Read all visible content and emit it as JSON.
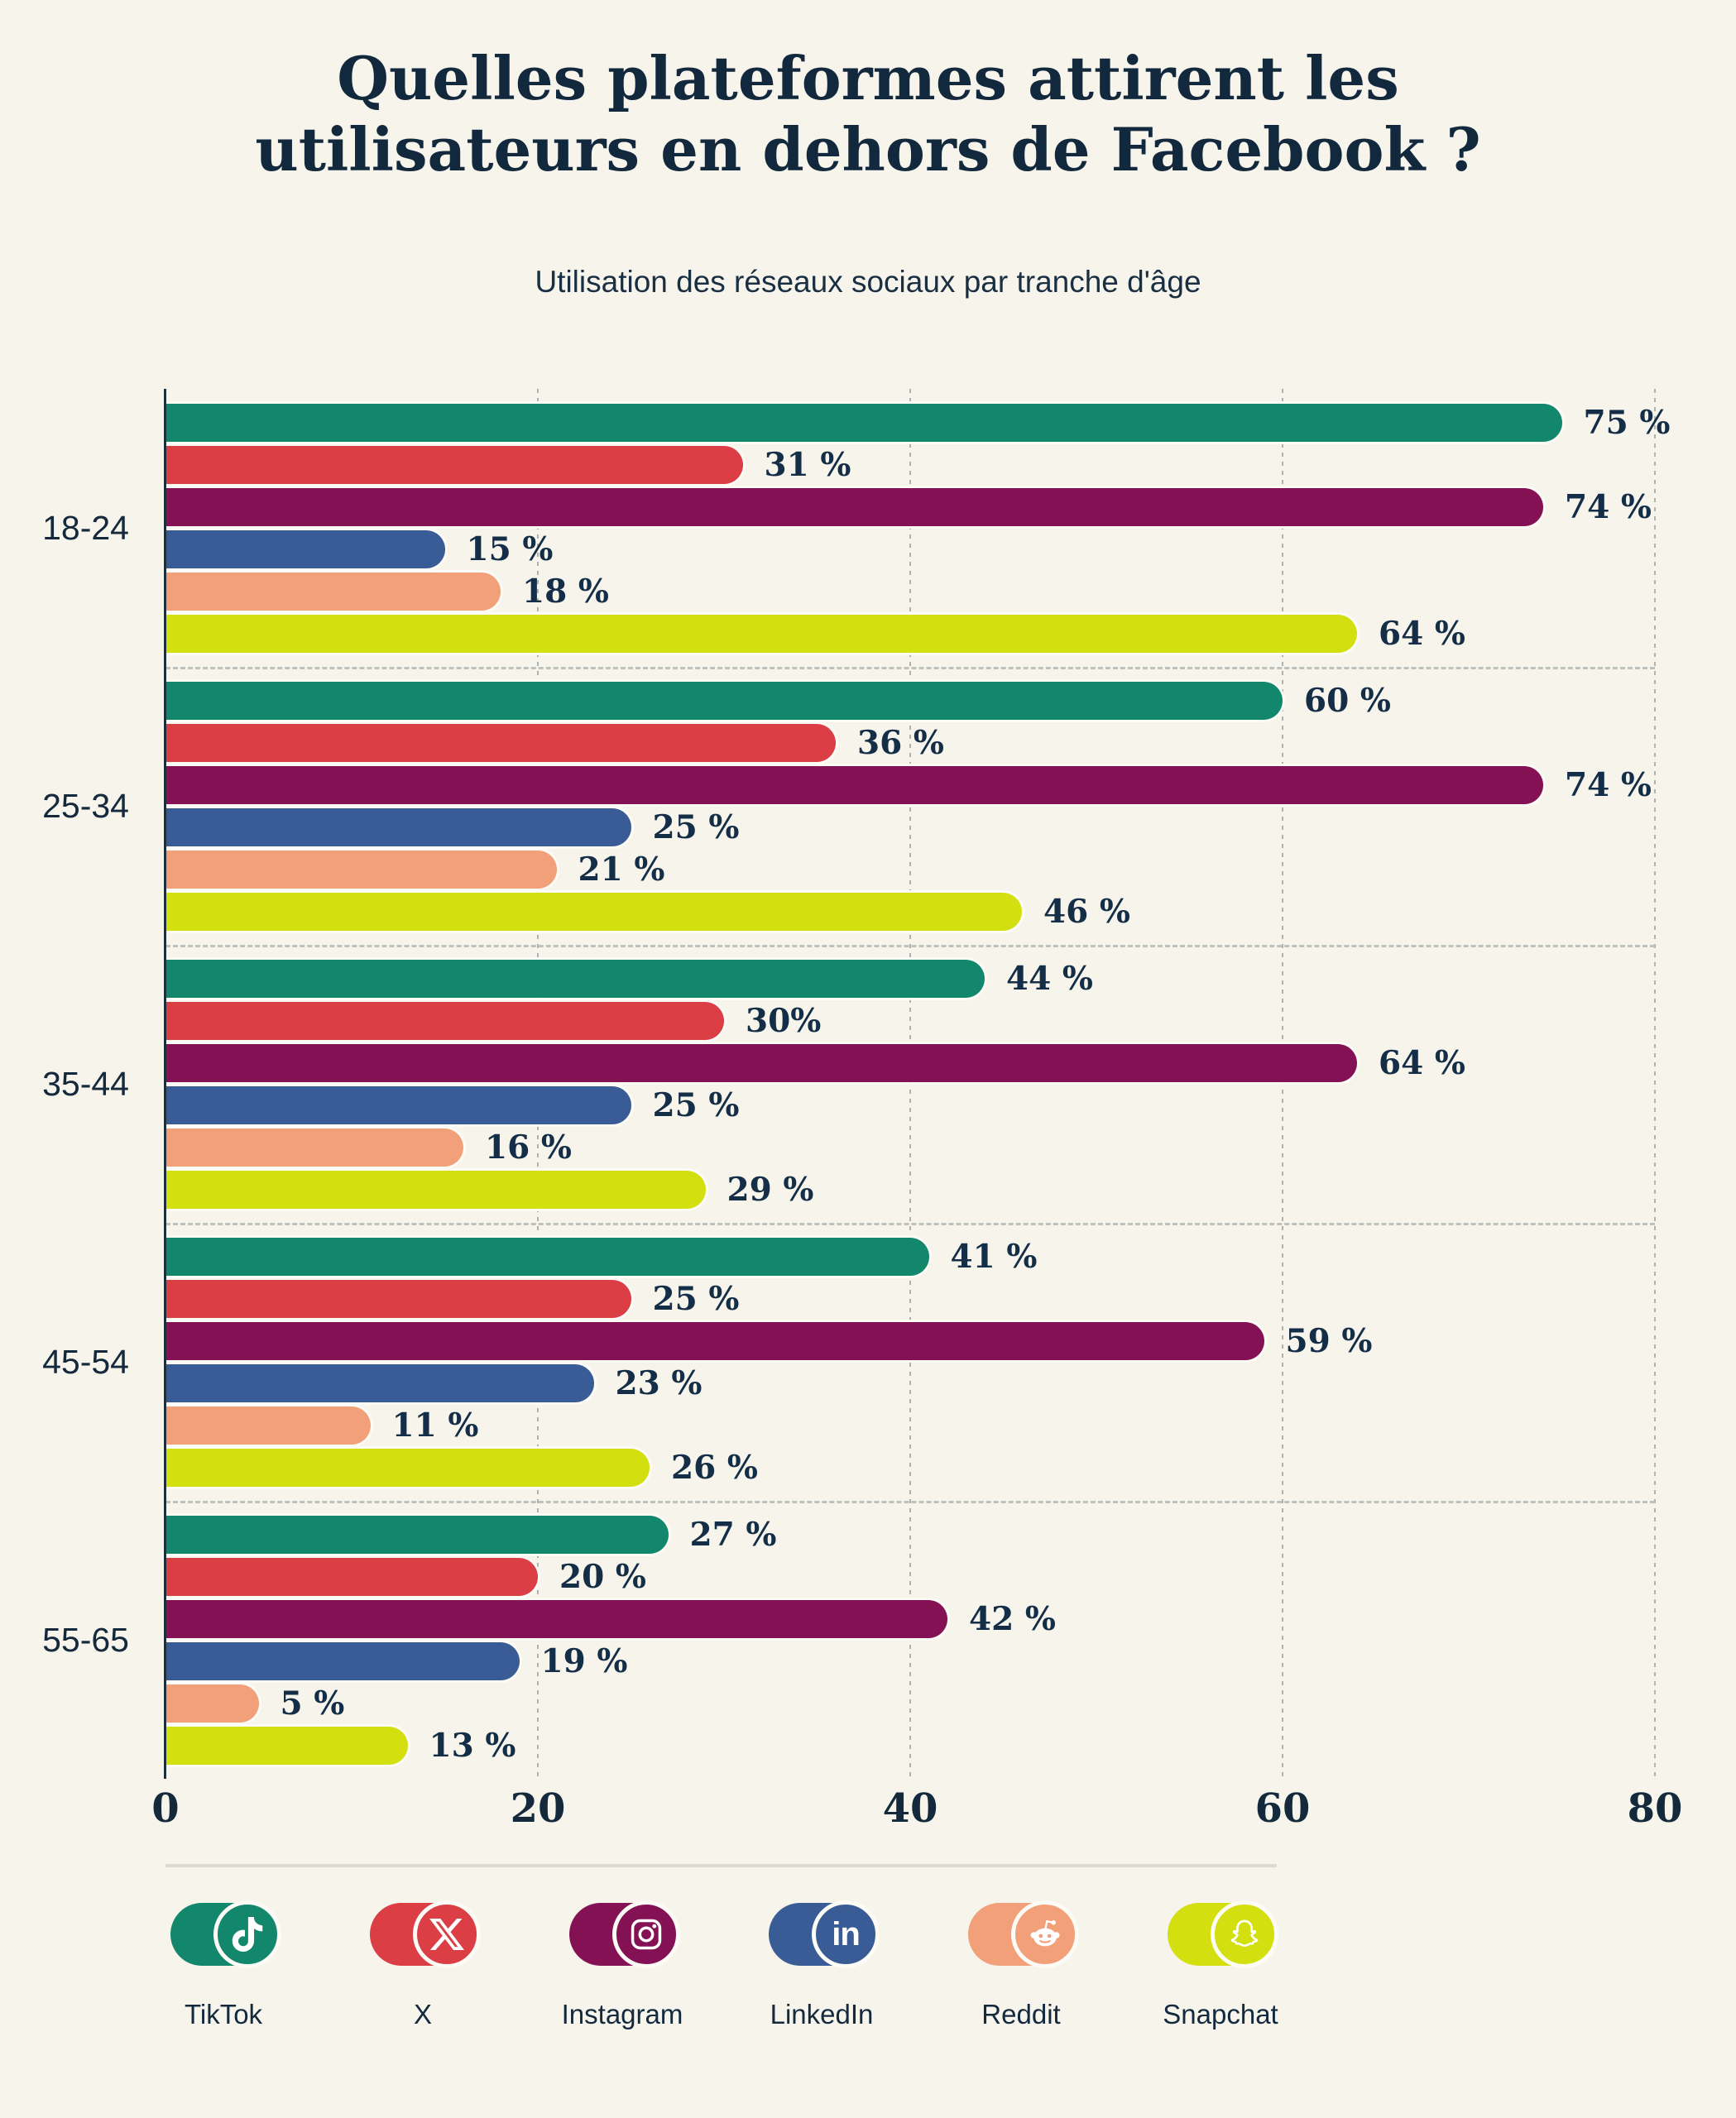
{
  "header": {
    "title_line1": "Quelles plateformes attirent les",
    "title_line2": "utilisateurs en dehors de Facebook ?",
    "subtitle": "Utilisation des réseaux sociaux par tranche d'âge"
  },
  "colors": {
    "background": "#F7F4EC",
    "text_navy": "#13293E",
    "axis": "#1E2F3C",
    "gridline": "#ADB3AF",
    "group_separator": "#BCC2BE",
    "legend_divider": "#DBDBD4"
  },
  "chart_data": {
    "type": "bar",
    "orientation": "horizontal",
    "title": "Quelles plateformes attirent les utilisateurs en dehors de Facebook ?",
    "subtitle": "Utilisation des réseaux sociaux par tranche d'âge",
    "categories": [
      "18-24",
      "25-34",
      "35-44",
      "45-54",
      "55-65"
    ],
    "series": [
      {
        "name": "TikTok",
        "color": "#13876B",
        "values": [
          75,
          60,
          44,
          41,
          27
        ],
        "labels": [
          "75 %",
          "60 %",
          "44 %",
          "41 %",
          "27 %"
        ]
      },
      {
        "name": "X",
        "color": "#DB3E44",
        "values": [
          31,
          36,
          30,
          25,
          20
        ],
        "labels": [
          "31 %",
          "36 %",
          "30%",
          "25 %",
          "20 %"
        ]
      },
      {
        "name": "Instagram",
        "color": "#851155",
        "values": [
          74,
          74,
          64,
          59,
          42
        ],
        "labels": [
          "74 %",
          "74 %",
          "64 %",
          "59 %",
          "42 %"
        ]
      },
      {
        "name": "LinkedIn",
        "color": "#3A5C96",
        "values": [
          15,
          25,
          25,
          23,
          19
        ],
        "labels": [
          "15 %",
          "25 %",
          "25 %",
          "23 %",
          "19 %"
        ]
      },
      {
        "name": "Reddit",
        "color": "#F2A07A",
        "values": [
          18,
          21,
          16,
          11,
          5
        ],
        "labels": [
          "18 %",
          "21 %",
          "16 %",
          "11 %",
          "5 %"
        ]
      },
      {
        "name": "Snapchat",
        "color": "#D4DF10",
        "values": [
          64,
          46,
          29,
          26,
          13
        ],
        "labels": [
          "64 %",
          "46 %",
          "29 %",
          "26 %",
          "13 %"
        ]
      }
    ],
    "xlim": [
      0,
      80
    ],
    "x_ticks": [
      "0",
      "20",
      "40",
      "60",
      "80"
    ],
    "grid": "dashed-vertical",
    "legend_position": "bottom"
  },
  "legend": {
    "items": [
      {
        "label": "TikTok",
        "icon": "tiktok-icon"
      },
      {
        "label": "X",
        "icon": "x-icon"
      },
      {
        "label": "Instagram",
        "icon": "instagram-icon"
      },
      {
        "label": "LinkedIn",
        "icon": "linkedin-icon"
      },
      {
        "label": "Reddit",
        "icon": "reddit-icon"
      },
      {
        "label": "Snapchat",
        "icon": "snapchat-icon"
      }
    ]
  }
}
